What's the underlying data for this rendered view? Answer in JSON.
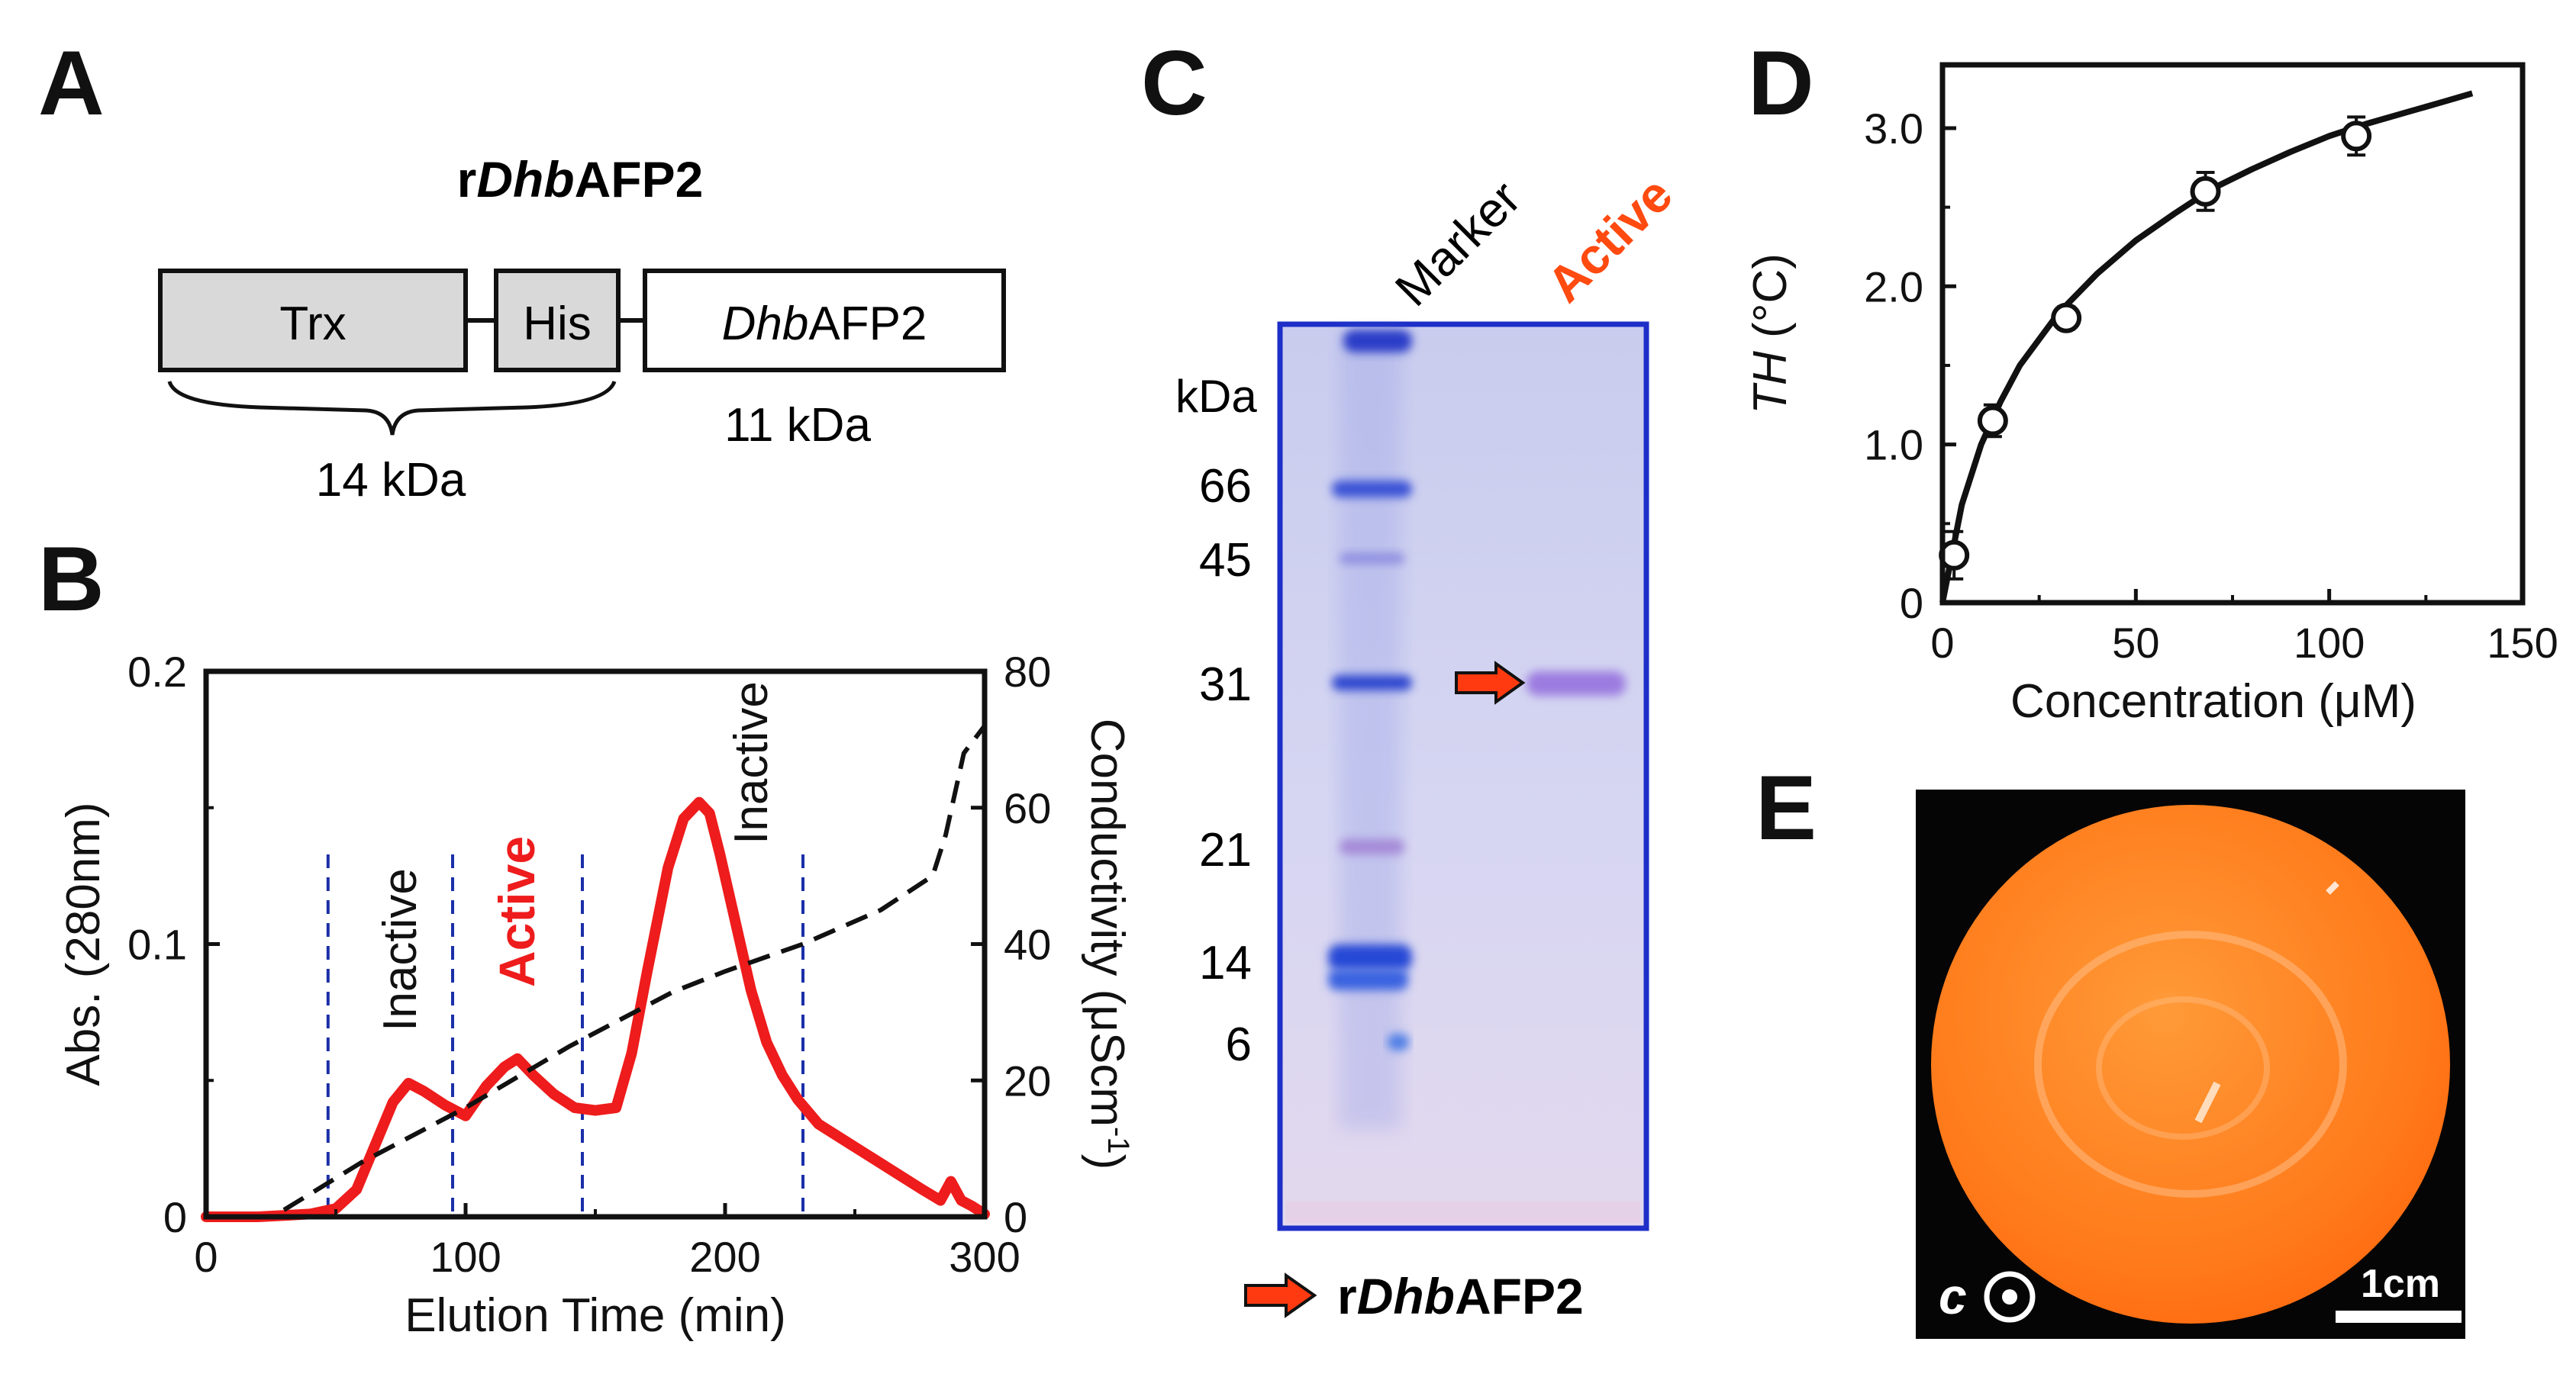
{
  "panels": {
    "A": {
      "label": "A",
      "title_prefix": "r",
      "title_italic": "Dhb",
      "title_suffix": "AFP2",
      "box_trx": "Trx",
      "box_his": "His",
      "box_afp_italic": "Dhb",
      "box_afp_suffix": "AFP2",
      "brace_label": "14 kDa",
      "afp_size": "11 kDa"
    },
    "B": {
      "label": "B",
      "region_labels": [
        "Inactive",
        "Active",
        "Inactive"
      ],
      "right_axis_label_main": "Conductivity (μScm",
      "right_axis_label_sup": "-1",
      "right_axis_label_end": ")",
      "right_ticks": [
        "0",
        "20",
        "40",
        "60",
        "80"
      ]
    },
    "C": {
      "label": "C",
      "lane_marker": "Marker",
      "lane_active": "Active",
      "unit": "kDa",
      "mw_labels": [
        "66",
        "45",
        "31",
        "21",
        "14",
        "6"
      ],
      "legend_prefix": "r",
      "legend_italic": "Dhb",
      "legend_suffix": "AFP2"
    },
    "D": {
      "label": "D"
    },
    "E": {
      "label": "E",
      "c_axis_letter": "c",
      "scale_bar": "1cm"
    }
  },
  "chart_data": [
    {
      "panel": "B",
      "type": "line",
      "title": "",
      "xlabel": "Elution Time (min)",
      "ylabel": "Abs. (280nm)",
      "xlim": [
        0,
        300
      ],
      "ylim": [
        0,
        0.2
      ],
      "x_ticks": [
        "0",
        "100",
        "200",
        "300"
      ],
      "y_ticks": [
        "0",
        "0.1",
        "0.2"
      ],
      "y2lim": [
        0,
        80
      ],
      "fraction_boundaries": [
        47,
        95,
        145,
        230
      ],
      "series": [
        {
          "color": "#ee1c1c",
          "axis": "left",
          "x": [
            0,
            20,
            40,
            50,
            58,
            65,
            72,
            78,
            84,
            92,
            100,
            108,
            115,
            120,
            126,
            134,
            142,
            150,
            158,
            164,
            170,
            178,
            184,
            190,
            194,
            198,
            204,
            210,
            216,
            222,
            228,
            236,
            246,
            256,
            266,
            276,
            283,
            287,
            291,
            295,
            300
          ],
          "y": [
            0.0,
            0.0,
            0.001,
            0.003,
            0.01,
            0.026,
            0.042,
            0.049,
            0.046,
            0.041,
            0.037,
            0.048,
            0.055,
            0.058,
            0.052,
            0.045,
            0.04,
            0.039,
            0.04,
            0.06,
            0.09,
            0.128,
            0.146,
            0.152,
            0.148,
            0.133,
            0.108,
            0.083,
            0.064,
            0.052,
            0.043,
            0.034,
            0.028,
            0.022,
            0.016,
            0.01,
            0.006,
            0.013,
            0.006,
            0.004,
            0.001
          ]
        },
        {
          "color": "#111111",
          "axis": "right",
          "dashed": true,
          "x": [
            30,
            60,
            100,
            140,
            180,
            200,
            230,
            260,
            280,
            285,
            292,
            300
          ],
          "y": [
            1,
            8,
            16,
            25,
            33,
            36,
            40,
            45,
            50,
            56,
            68,
            72
          ]
        }
      ]
    },
    {
      "panel": "D",
      "type": "scatter",
      "title": "",
      "xlabel": "Concentration (μM)",
      "ylabel_italic": "TH",
      "ylabel_rest": " (°C)",
      "xlim": [
        0,
        150
      ],
      "ylim": [
        0,
        3.4
      ],
      "x_ticks": [
        "0",
        "50",
        "100",
        "150"
      ],
      "y_ticks": [
        "0",
        "1.0",
        "2.0",
        "3.0"
      ],
      "series": [
        {
          "x": [
            3,
            13,
            32,
            68,
            107
          ],
          "y": [
            0.3,
            1.15,
            1.8,
            2.6,
            2.95
          ],
          "error": [
            0.15,
            0.1,
            0.07,
            0.12,
            0.12
          ]
        }
      ],
      "fit_curve": {
        "x": [
          0,
          5,
          10,
          15,
          20,
          30,
          40,
          50,
          60,
          70,
          80,
          90,
          100,
          110,
          120,
          130,
          137
        ],
        "y": [
          0.0,
          0.62,
          1.0,
          1.27,
          1.5,
          1.83,
          2.08,
          2.29,
          2.46,
          2.62,
          2.74,
          2.85,
          2.95,
          3.03,
          3.1,
          3.17,
          3.22
        ]
      }
    }
  ]
}
